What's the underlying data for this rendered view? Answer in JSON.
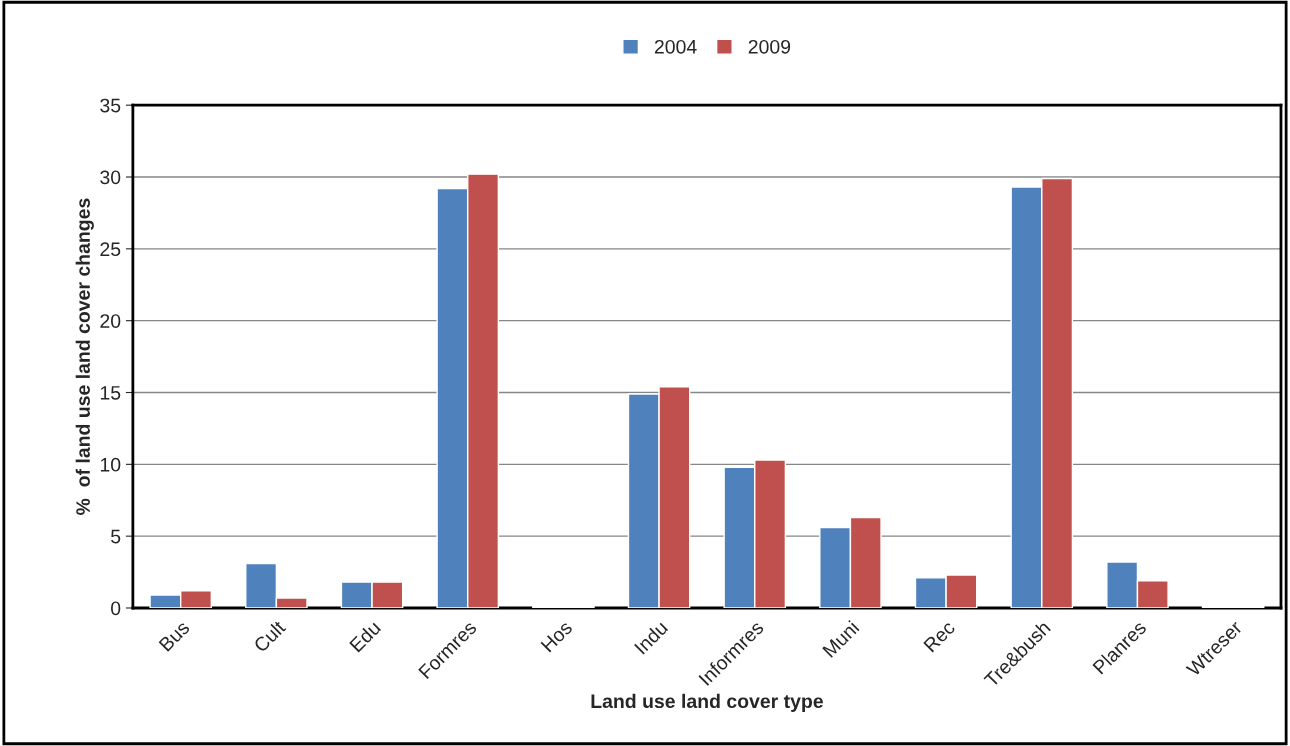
{
  "chart_data": {
    "type": "bar",
    "xlabel": "Land use land cover type",
    "ylabel": "%  of land use land cover changes",
    "categories": [
      "Bus",
      "Cult",
      "Edu",
      "Formres",
      "Hos",
      "Indu",
      "Informres",
      "Muni",
      "Rec",
      "Tre&bush",
      "Planres",
      "Wtreser"
    ],
    "series": [
      {
        "name": "2004",
        "color": "#4f81bd",
        "values": [
          0.9,
          3.1,
          1.8,
          29.2,
          0.1,
          14.9,
          9.8,
          5.6,
          2.1,
          29.3,
          3.2,
          0.1
        ]
      },
      {
        "name": "2009",
        "color": "#c0504d",
        "values": [
          1.2,
          0.7,
          1.8,
          30.2,
          0.1,
          15.4,
          10.3,
          6.3,
          2.3,
          29.9,
          1.9,
          0.1
        ]
      }
    ],
    "ylim": [
      0,
      35
    ],
    "yticks": [
      0,
      5,
      10,
      15,
      20,
      25,
      30,
      35
    ],
    "grid": "y",
    "legend": "top"
  }
}
